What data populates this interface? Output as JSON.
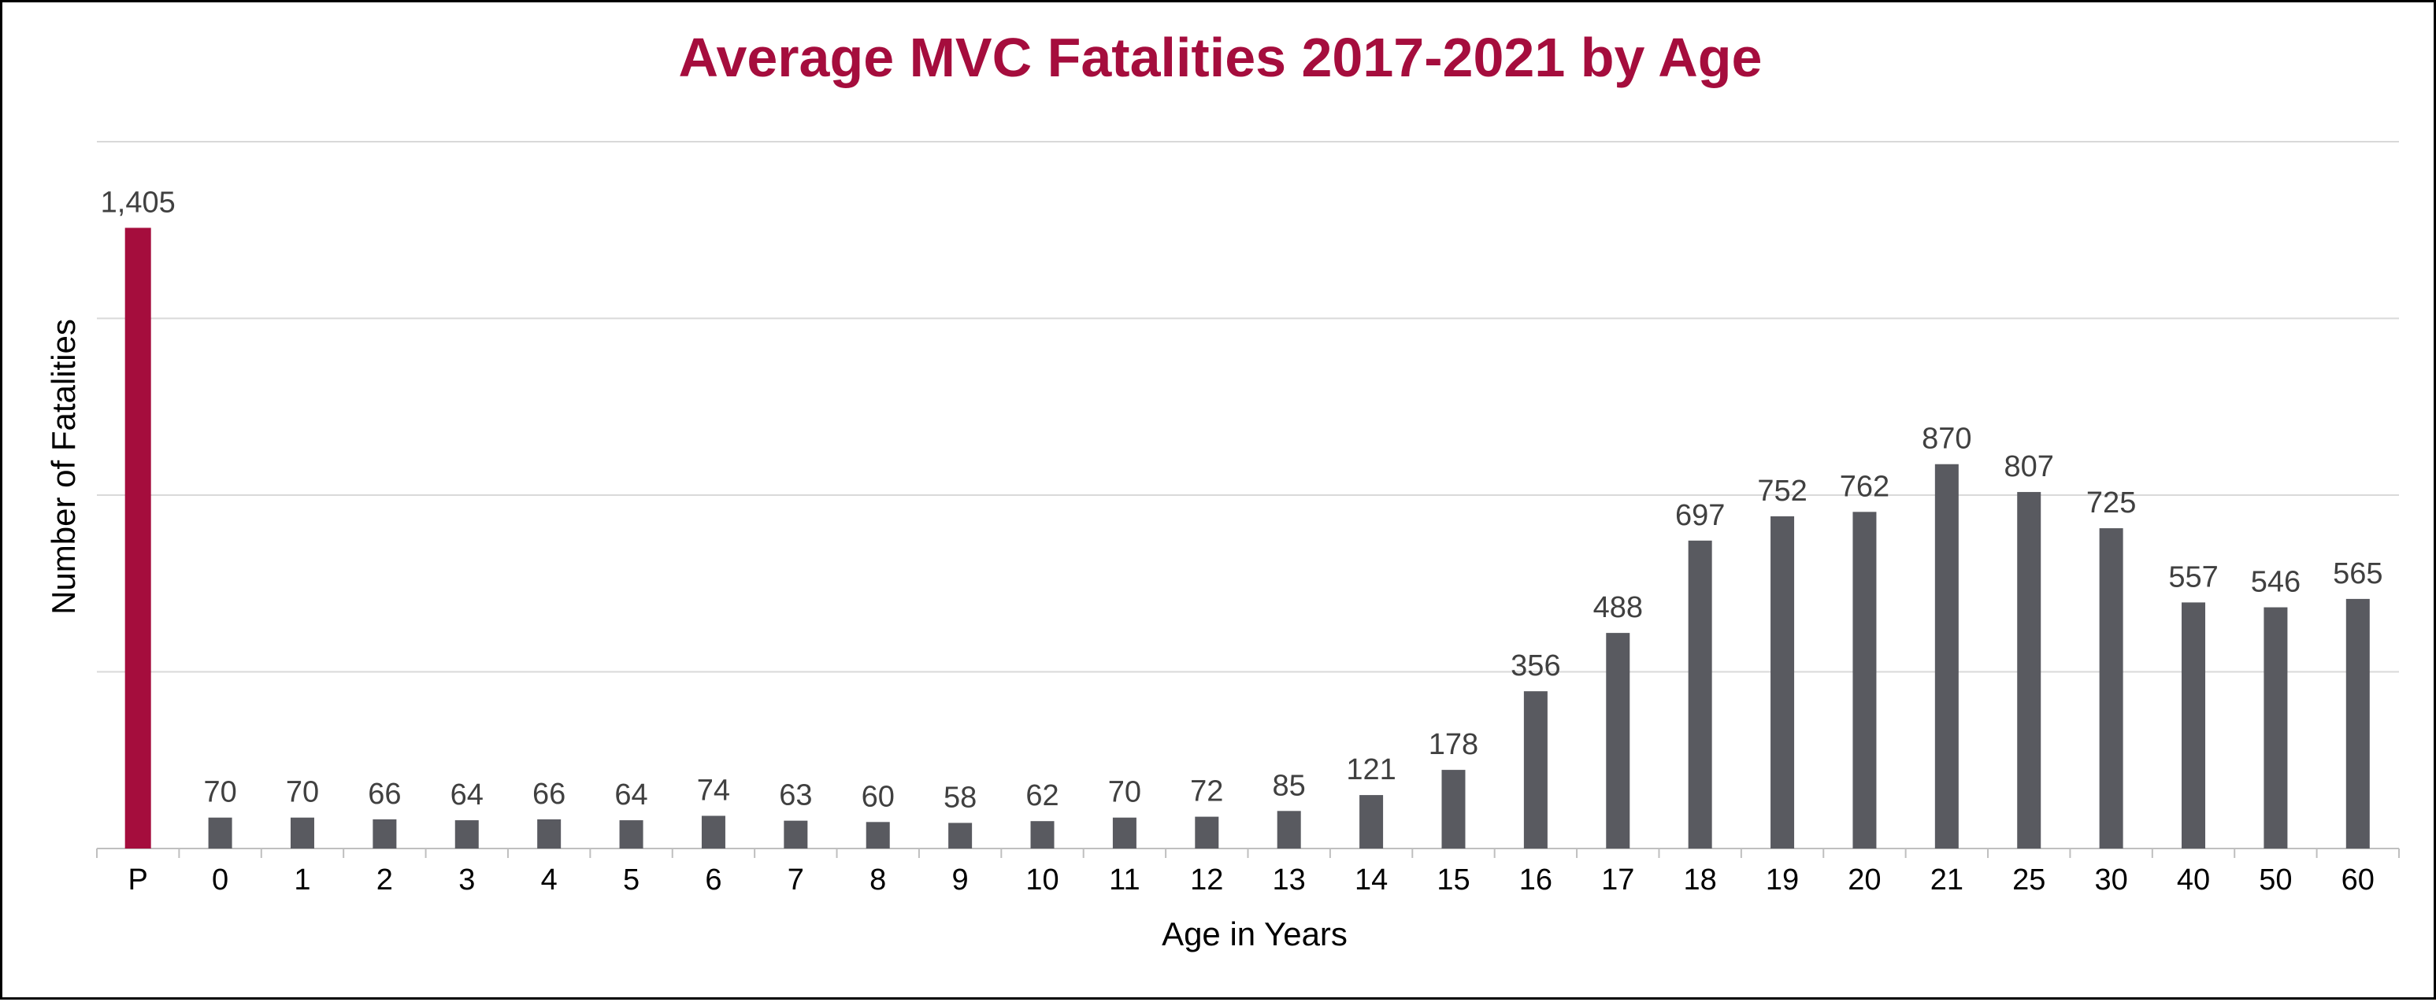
{
  "chart_data": {
    "type": "bar",
    "title": "Average MVC Fatalities 2017-2021 by Age",
    "xlabel": "Age in Years",
    "ylabel": "Number of Fatalities",
    "categories": [
      "P",
      "0",
      "1",
      "2",
      "3",
      "4",
      "5",
      "6",
      "7",
      "8",
      "9",
      "10",
      "11",
      "12",
      "13",
      "14",
      "15",
      "16",
      "17",
      "18",
      "19",
      "20",
      "21",
      "25",
      "30",
      "40",
      "50",
      "60"
    ],
    "values": [
      1405,
      70,
      70,
      66,
      64,
      66,
      64,
      74,
      63,
      60,
      58,
      62,
      70,
      72,
      85,
      121,
      178,
      356,
      488,
      697,
      752,
      762,
      870,
      807,
      725,
      557,
      546,
      565
    ],
    "data_labels": [
      "1,405",
      "70",
      "70",
      "66",
      "64",
      "66",
      "64",
      "74",
      "63",
      "60",
      "58",
      "62",
      "70",
      "72",
      "85",
      "121",
      "178",
      "356",
      "488",
      "697",
      "752",
      "762",
      "870",
      "807",
      "725",
      "557",
      "546",
      "565"
    ],
    "ylim": [
      0,
      1600
    ],
    "gridlines": [
      400,
      800,
      1200,
      1600
    ],
    "grid": true,
    "legend": "none",
    "colors": {
      "title": "#A50D3D",
      "highlight_bar": "#A50D3D",
      "bar": "#595A60",
      "gridline": "#D9D9D9",
      "axis": "#BFBFBF"
    },
    "highlight_index": 0
  }
}
